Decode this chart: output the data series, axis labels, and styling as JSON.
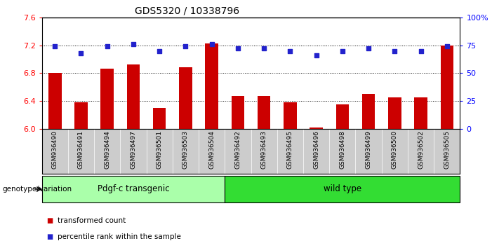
{
  "title": "GDS5320 / 10338796",
  "categories": [
    "GSM936490",
    "GSM936491",
    "GSM936494",
    "GSM936497",
    "GSM936501",
    "GSM936503",
    "GSM936504",
    "GSM936492",
    "GSM936493",
    "GSM936495",
    "GSM936496",
    "GSM936498",
    "GSM936499",
    "GSM936500",
    "GSM936502",
    "GSM936505"
  ],
  "bar_values": [
    6.8,
    6.38,
    6.86,
    6.92,
    6.3,
    6.88,
    7.23,
    6.47,
    6.47,
    6.38,
    6.02,
    6.35,
    6.5,
    6.45,
    6.45,
    7.2
  ],
  "scatter_values": [
    74,
    68,
    74,
    76,
    70,
    74,
    76,
    72,
    72,
    70,
    66,
    70,
    72,
    70,
    70,
    74
  ],
  "bar_color": "#cc0000",
  "scatter_color": "#2222cc",
  "ylim_left": [
    6.0,
    7.6
  ],
  "ylim_right": [
    0,
    100
  ],
  "yticks_left": [
    6.0,
    6.4,
    6.8,
    7.2,
    7.6
  ],
  "yticks_right": [
    0,
    25,
    50,
    75,
    100
  ],
  "ytick_labels_right": [
    "0",
    "25",
    "50",
    "75",
    "100%"
  ],
  "group1_label": "Pdgf-c transgenic",
  "group2_label": "wild type",
  "group1_color": "#aaffaa",
  "group2_color": "#33dd33",
  "group1_count": 7,
  "legend_bar_label": "transformed count",
  "legend_scatter_label": "percentile rank within the sample",
  "xlabel_genotype": "genotype/variation",
  "tick_area_color": "#cccccc",
  "bar_width": 0.5
}
